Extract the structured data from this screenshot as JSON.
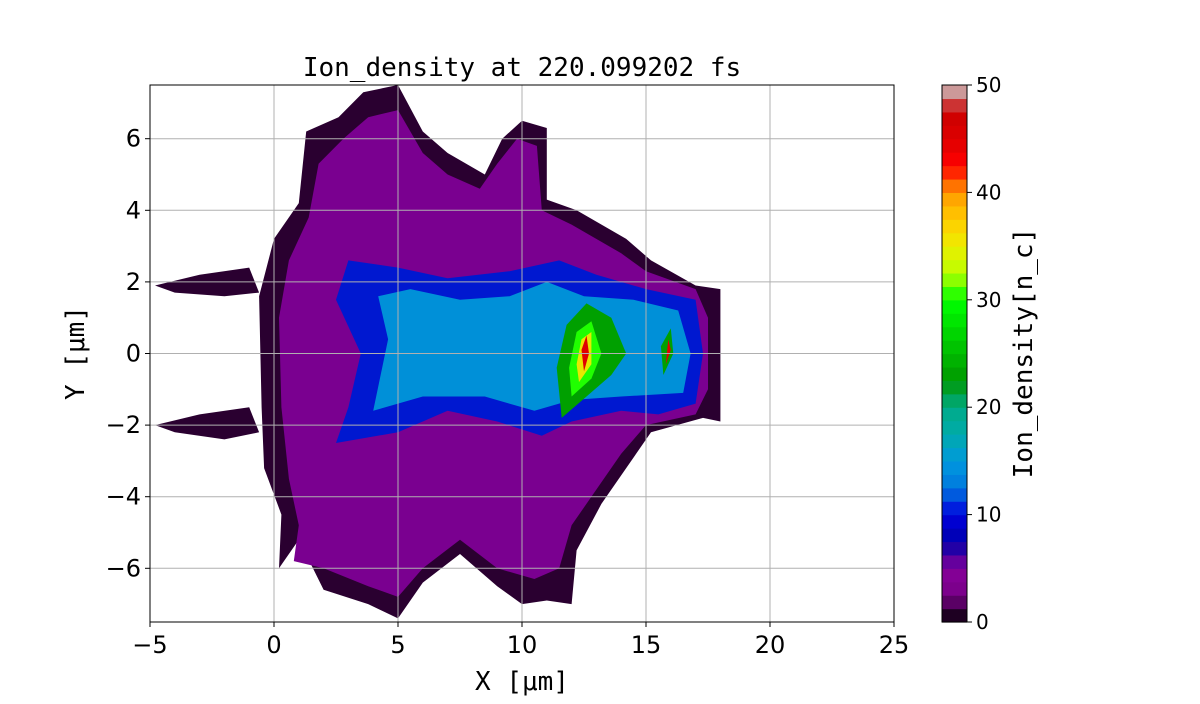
{
  "chart_data": {
    "type": "heatmap",
    "title": "Ion_density at 220.099202 fs",
    "xlabel": "X [μm]",
    "ylabel": "Y [μm]",
    "xlim": [
      -5,
      25
    ],
    "ylim": [
      -7.5,
      7.5
    ],
    "xticks": [
      -5,
      0,
      5,
      10,
      15,
      20,
      25
    ],
    "yticks": [
      -6,
      -4,
      -2,
      0,
      2,
      4,
      6
    ],
    "grid": true,
    "colorbar": {
      "label": "Ion_density[n_c]",
      "range": [
        0,
        50
      ],
      "ticks": [
        0,
        10,
        20,
        30,
        40,
        50
      ],
      "colormap": "nipy_spectral",
      "levels": 40
    },
    "regions": [
      {
        "level": 1,
        "color": "#2a0030",
        "points": [
          [
            0.2,
            -6
          ],
          [
            1,
            -5.2
          ],
          [
            2,
            -6.6
          ],
          [
            3.8,
            -7
          ],
          [
            5,
            -7.4
          ],
          [
            6,
            -6.4
          ],
          [
            7.5,
            -5.6
          ],
          [
            9,
            -6.5
          ],
          [
            10,
            -7
          ],
          [
            11,
            -6.9
          ],
          [
            12,
            -7
          ],
          [
            12.2,
            -5.5
          ],
          [
            13.2,
            -4.2
          ],
          [
            14.2,
            -3.2
          ],
          [
            15.2,
            -2.2
          ],
          [
            17.3,
            -1.8
          ],
          [
            18,
            -1.9
          ],
          [
            18,
            1.8
          ],
          [
            17,
            1.9
          ],
          [
            15.2,
            2.6
          ],
          [
            14.2,
            3.2
          ],
          [
            12.2,
            4
          ],
          [
            11,
            4.3
          ],
          [
            11,
            6.3
          ],
          [
            10,
            6.5
          ],
          [
            9.2,
            6
          ],
          [
            8.5,
            5
          ],
          [
            7,
            5.6
          ],
          [
            6,
            6.2
          ],
          [
            5,
            7.5
          ],
          [
            3.6,
            7.3
          ],
          [
            2.6,
            6.6
          ],
          [
            1.3,
            6.2
          ],
          [
            1,
            4.2
          ],
          [
            0,
            3.2
          ],
          [
            -0.6,
            1.6
          ],
          [
            -0.5,
            -1.5
          ],
          [
            -0.4,
            -3.2
          ],
          [
            0.3,
            -4.5
          ]
        ]
      },
      {
        "level": 5,
        "color": "#7a0090",
        "points": [
          [
            0.8,
            -5.8
          ],
          [
            2,
            -6
          ],
          [
            3.8,
            -6.5
          ],
          [
            5,
            -6.8
          ],
          [
            6,
            -6
          ],
          [
            7.5,
            -5.2
          ],
          [
            9,
            -6
          ],
          [
            10.5,
            -6.3
          ],
          [
            11.5,
            -6
          ],
          [
            12,
            -4.8
          ],
          [
            13,
            -3.8
          ],
          [
            14,
            -2.8
          ],
          [
            15,
            -2
          ],
          [
            17,
            -1.7
          ],
          [
            17.5,
            -1
          ],
          [
            17.5,
            1
          ],
          [
            17,
            1.8
          ],
          [
            15,
            2.3
          ],
          [
            14,
            2.8
          ],
          [
            12,
            3.6
          ],
          [
            10.8,
            4
          ],
          [
            10.6,
            5.8
          ],
          [
            9.8,
            6
          ],
          [
            9,
            5.3
          ],
          [
            8.3,
            4.6
          ],
          [
            7,
            5
          ],
          [
            6,
            5.6
          ],
          [
            5,
            6.8
          ],
          [
            3.8,
            6.6
          ],
          [
            2.8,
            6
          ],
          [
            1.8,
            5.3
          ],
          [
            1.4,
            3.8
          ],
          [
            0.6,
            2.6
          ],
          [
            0.2,
            1
          ],
          [
            0.3,
            -1.5
          ],
          [
            0.6,
            -3.5
          ],
          [
            1,
            -4.8
          ]
        ]
      },
      {
        "level": 10,
        "color": "#0018d0",
        "points": [
          [
            2.5,
            -2.5
          ],
          [
            5,
            -2.2
          ],
          [
            7,
            -1.6
          ],
          [
            9,
            -1.9
          ],
          [
            10.8,
            -2.3
          ],
          [
            12,
            -1.9
          ],
          [
            14,
            -1.6
          ],
          [
            15.5,
            -1.7
          ],
          [
            17,
            -1.4
          ],
          [
            17.3,
            0
          ],
          [
            17,
            1.5
          ],
          [
            15,
            1.8
          ],
          [
            13,
            2.2
          ],
          [
            11.5,
            2.6
          ],
          [
            9.5,
            2.3
          ],
          [
            7,
            2.1
          ],
          [
            5,
            2.4
          ],
          [
            3,
            2.6
          ],
          [
            2.5,
            1.5
          ],
          [
            3.5,
            0
          ],
          [
            3,
            -1.5
          ]
        ]
      },
      {
        "level": 15,
        "color": "#0090d8",
        "points": [
          [
            4,
            -1.6
          ],
          [
            6,
            -1.2
          ],
          [
            8.5,
            -1.2
          ],
          [
            10.5,
            -1.6
          ],
          [
            12,
            -1.3
          ],
          [
            14,
            -1.2
          ],
          [
            16.5,
            -1.1
          ],
          [
            16.8,
            0
          ],
          [
            16.3,
            1.2
          ],
          [
            14.5,
            1.5
          ],
          [
            12.5,
            1.6
          ],
          [
            11,
            2
          ],
          [
            9.5,
            1.6
          ],
          [
            7.5,
            1.5
          ],
          [
            5.5,
            1.8
          ],
          [
            4.2,
            1.6
          ],
          [
            4.6,
            0.4
          ]
        ]
      },
      {
        "level": 22,
        "color": "#00a000",
        "points": [
          [
            11.6,
            -1.8
          ],
          [
            12.6,
            -1.2
          ],
          [
            13.6,
            -0.6
          ],
          [
            14.2,
            0
          ],
          [
            13.6,
            1
          ],
          [
            12.6,
            1.4
          ],
          [
            11.8,
            0.8
          ],
          [
            11.4,
            -0.4
          ]
        ]
      },
      {
        "level": 30,
        "color": "#20ff00",
        "points": [
          [
            12,
            -1.2
          ],
          [
            12.8,
            -0.7
          ],
          [
            13.2,
            0
          ],
          [
            12.8,
            0.9
          ],
          [
            12.2,
            0.6
          ],
          [
            11.9,
            -0.4
          ]
        ]
      },
      {
        "level": 36,
        "color": "#e8e800",
        "points": [
          [
            12.3,
            -0.8
          ],
          [
            12.8,
            -0.3
          ],
          [
            12.8,
            0.6
          ],
          [
            12.4,
            0.4
          ],
          [
            12.2,
            -0.3
          ]
        ]
      },
      {
        "level": 46,
        "color": "#e00000",
        "points": [
          [
            12.5,
            -0.5
          ],
          [
            12.7,
            0
          ],
          [
            12.6,
            0.5
          ],
          [
            12.4,
            0.1
          ]
        ]
      },
      {
        "level": 22,
        "color": "#00a000",
        "points": [
          [
            15.7,
            -0.6
          ],
          [
            16.1,
            0
          ],
          [
            16,
            0.7
          ],
          [
            15.6,
            0.2
          ]
        ]
      },
      {
        "level": 46,
        "color": "#e00000",
        "points": [
          [
            15.8,
            -0.3
          ],
          [
            16,
            0.1
          ],
          [
            15.9,
            0.4
          ]
        ]
      },
      {
        "level": 1,
        "color": "#2a0030",
        "points": [
          [
            -4.8,
            -2
          ],
          [
            -3,
            -1.7
          ],
          [
            -1,
            -1.5
          ],
          [
            -0.6,
            -2.2
          ],
          [
            -2,
            -2.4
          ],
          [
            -4,
            -2.2
          ]
        ]
      },
      {
        "level": 1,
        "color": "#2a0030",
        "points": [
          [
            -4.8,
            1.9
          ],
          [
            -3,
            2.2
          ],
          [
            -1,
            2.4
          ],
          [
            -0.6,
            1.7
          ],
          [
            -2,
            1.6
          ],
          [
            -4,
            1.7
          ]
        ]
      }
    ]
  }
}
